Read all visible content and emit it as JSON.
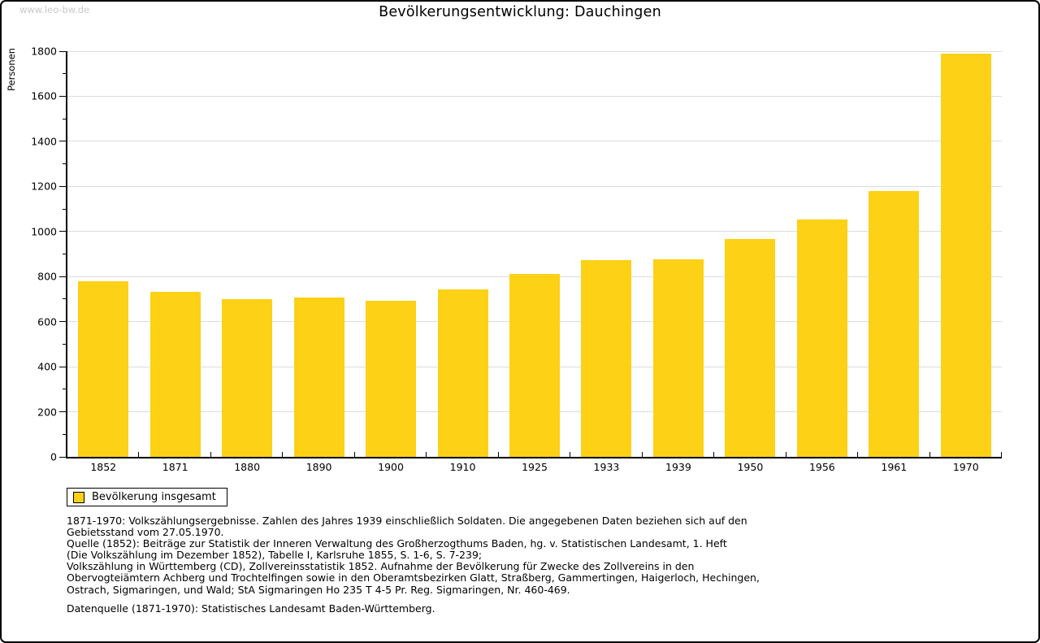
{
  "page": {
    "watermark": "www.leo-bw.de"
  },
  "chart_data": {
    "type": "bar",
    "title": "Bevölkerungsentwicklung: Dauchingen",
    "xlabel": "",
    "ylabel": "Personen",
    "ylim": [
      0,
      1800
    ],
    "ytick_interval": 200,
    "ytick_minor_interval": 100,
    "grid": true,
    "legend_label": "Bevölkerung insgesamt",
    "legend_position": "bottom-left",
    "categories": [
      "1852",
      "1871",
      "1880",
      "1890",
      "1900",
      "1910",
      "1925",
      "1933",
      "1939",
      "1950",
      "1956",
      "1961",
      "1970"
    ],
    "values": [
      780,
      733,
      700,
      706,
      693,
      743,
      812,
      872,
      878,
      968,
      1054,
      1178,
      1790
    ]
  },
  "colors": {
    "bar": "#FCD116",
    "grid": "#DCDCDC",
    "watermark": "#C8C8C8",
    "axis": "#000000"
  },
  "notes": {
    "lines": [
      "1871-1970: Volkszählungsergebnisse. Zahlen des Jahres 1939 einschließlich Soldaten. Die angegebenen Daten beziehen sich auf den",
      "Gebietsstand vom 27.05.1970.",
      "Quelle (1852): Beiträge zur Statistik der Inneren Verwaltung des Großherzogthums Baden, hg. v. Statistischen Landesamt, 1. Heft",
      "(Die Volkszählung im Dezember 1852), Tabelle I, Karlsruhe 1855, S. 1-6, S. 7-239;",
      "Volkszählung in Württemberg (CD), Zollvereinsstatistik 1852. Aufnahme der Bevölkerung für Zwecke des Zollvereins in den",
      "Obervogteiämtern Achberg und Trochtelfingen sowie in den Oberamtsbezirken Glatt, Straßberg, Gammertingen, Haigerloch, Hechingen,",
      "Ostrach, Sigmaringen, und Wald; StA Sigmaringen Ho 235 T 4-5 Pr. Reg. Sigmaringen, Nr. 460-469."
    ],
    "source": "Datenquelle (1871-1970): Statistisches Landesamt Baden-Württemberg."
  }
}
